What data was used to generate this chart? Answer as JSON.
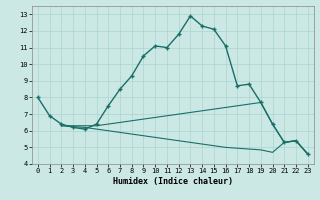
{
  "xlabel": "Humidex (Indice chaleur)",
  "bg_color": "#cce8e5",
  "grid_color": "#aad4d0",
  "line_color": "#1a6e68",
  "xlim": [
    -0.5,
    23.5
  ],
  "ylim": [
    4.0,
    13.5
  ],
  "yticks": [
    4,
    5,
    6,
    7,
    8,
    9,
    10,
    11,
    12,
    13
  ],
  "xticks": [
    0,
    1,
    2,
    3,
    4,
    5,
    6,
    7,
    8,
    9,
    10,
    11,
    12,
    13,
    14,
    15,
    16,
    17,
    18,
    19,
    20,
    21,
    22,
    23
  ],
  "xtick_labels": [
    "0",
    "1",
    "2",
    "3",
    "4",
    "5",
    "6",
    "7",
    "8",
    "9",
    "10",
    "11",
    "12",
    "13",
    "14",
    "15",
    "16",
    "17",
    "18",
    "19",
    "20",
    "21",
    "22",
    "23"
  ],
  "line1_x": [
    0,
    1,
    2,
    3,
    4,
    5,
    6,
    7,
    8,
    9,
    10,
    11,
    12,
    13,
    14,
    15,
    16,
    17,
    18,
    19,
    20,
    21,
    22,
    23
  ],
  "line1_y": [
    8.0,
    6.9,
    6.4,
    6.2,
    6.1,
    6.4,
    7.5,
    8.5,
    9.3,
    10.5,
    11.1,
    11.0,
    11.8,
    12.9,
    12.3,
    12.1,
    11.1,
    8.7,
    8.8,
    7.7,
    6.4,
    5.3,
    5.4,
    4.6
  ],
  "line2_x": [
    2,
    3,
    4,
    5,
    6,
    7,
    8,
    9,
    10,
    11,
    12,
    13,
    14,
    15,
    16,
    17,
    18,
    19,
    20,
    21,
    22,
    23
  ],
  "line2_y": [
    6.3,
    6.3,
    6.3,
    6.3,
    6.4,
    6.5,
    6.6,
    6.7,
    6.8,
    6.9,
    7.0,
    7.1,
    7.2,
    7.3,
    7.4,
    7.5,
    7.6,
    7.7,
    6.4,
    5.3,
    5.4,
    4.6
  ],
  "line3_x": [
    2,
    3,
    4,
    5,
    6,
    7,
    8,
    9,
    10,
    11,
    12,
    13,
    14,
    15,
    16,
    17,
    18,
    19,
    20,
    21,
    22,
    23
  ],
  "line3_y": [
    6.3,
    6.25,
    6.2,
    6.1,
    6.0,
    5.9,
    5.8,
    5.7,
    5.6,
    5.5,
    5.4,
    5.3,
    5.2,
    5.1,
    5.0,
    4.95,
    4.9,
    4.85,
    4.7,
    5.3,
    5.4,
    4.6
  ],
  "tick_labelsize": 5,
  "xlabel_fontsize": 6,
  "linewidth_main": 1.0,
  "linewidth_secondary": 0.8,
  "marker_size": 3.5,
  "marker_lw": 1.0
}
